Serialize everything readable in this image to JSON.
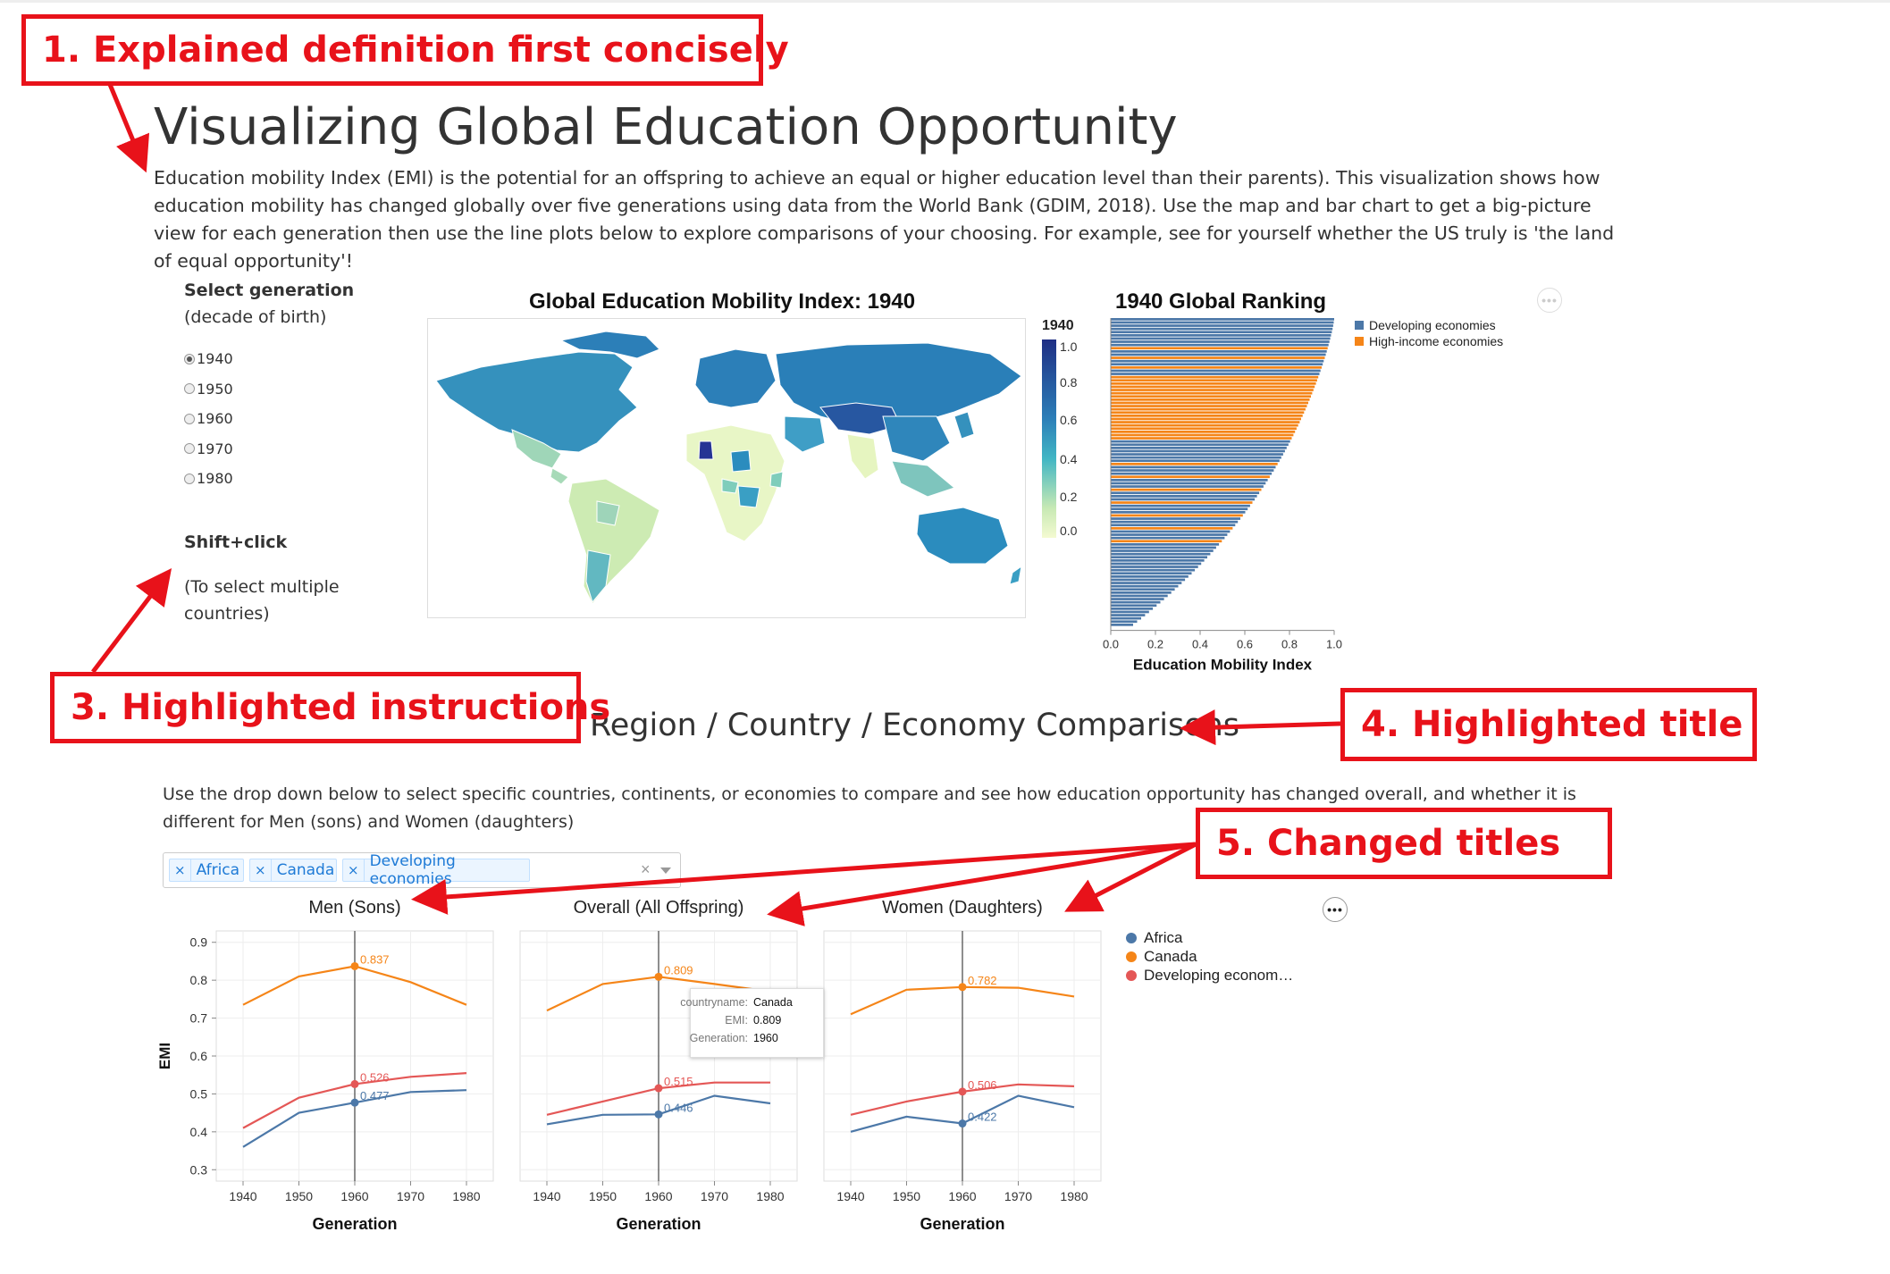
{
  "annotations": {
    "c1": "1. Explained definition first concisely",
    "c3": "3. Highlighted instructions",
    "c4": "4. Highlighted title",
    "c5": "5. Changed titles"
  },
  "header": {
    "title": "Visualizing Global Education Opportunity",
    "intro": "Education mobility Index (EMI) is the potential for an offspring to achieve an equal or higher education level than their parents). This visualization shows how education mobility has changed globally over five generations using data from the World Bank (GDIM, 2018). Use the map and bar chart to get a big-picture view for each generation then use the line plots below to explore comparisons of your choosing. For example, see for yourself whether the US truly is 'the land of equal opportunity'!"
  },
  "controls": {
    "select_title": "Select generation",
    "select_sub": "(decade of birth)",
    "options": [
      "1940",
      "1950",
      "1960",
      "1970",
      "1980"
    ],
    "selected": "1940",
    "shift_title": "Shift+click",
    "shift_desc": "(To select multiple countries)"
  },
  "map": {
    "title": "Global Education Mobility Index: 1940",
    "legend_title": "1940",
    "legend_ticks": [
      "1.0",
      "0.8",
      "0.6",
      "0.4",
      "0.2",
      "0.0"
    ],
    "colors": {
      "low": "#e3f4b4",
      "mid": "#3a9fc4",
      "high": "#1f2f84"
    }
  },
  "ranking": {
    "title": "1940 Global Ranking",
    "xlabel": "Education Mobility Index",
    "ticks": [
      "0.0",
      "0.2",
      "0.4",
      "0.6",
      "0.8",
      "1.0"
    ],
    "legend": [
      {
        "label": "Developing economies",
        "color": "#4c78a8"
      },
      {
        "label": "High-income economies",
        "color": "#f58518"
      }
    ]
  },
  "comparison": {
    "title": "Region / Country / Economy Comparisons",
    "desc": "Use the drop down below to select specific countries, continents, or economies to compare and see how education opportunity has changed overall, and whether it is different for Men (sons) and Women (daughters)",
    "tags": [
      "Africa",
      "Canada",
      "Developing economies"
    ],
    "clear_icon": "×",
    "panels": [
      "Men (Sons)",
      "Overall (All Offspring)",
      "Women (Daughters)"
    ],
    "ylabel": "EMI",
    "xlabel": "Generation",
    "yticks": [
      "0.9",
      "0.8",
      "0.7",
      "0.6",
      "0.5",
      "0.4",
      "0.3"
    ],
    "xticks": [
      "1940",
      "1950",
      "1960",
      "1970",
      "1980"
    ],
    "legend": [
      {
        "label": "Africa",
        "color": "#4c78a8"
      },
      {
        "label": "Canada",
        "color": "#f58518"
      },
      {
        "label": "Developing econom…",
        "color": "#e45756"
      }
    ],
    "tooltip": {
      "k1": "countryname:",
      "v1": "Canada",
      "k2": "EMI:",
      "v2": "0.809",
      "k3": "Generation:",
      "v3": "1960"
    }
  },
  "chart_data": [
    {
      "type": "bar",
      "title": "1940 Global Ranking",
      "xlabel": "Education Mobility Index",
      "xlim": [
        0,
        1
      ],
      "series": [
        {
          "name": "Developing economies",
          "values": []
        },
        {
          "name": "High-income economies",
          "values": []
        }
      ]
    },
    {
      "type": "line",
      "title": "Men (Sons)",
      "xlabel": "Generation",
      "ylabel": "EMI",
      "x": [
        1940,
        1950,
        1960,
        1970,
        1980
      ],
      "ylim": [
        0.27,
        0.93
      ],
      "series": [
        {
          "name": "Africa",
          "values": [
            0.36,
            0.45,
            0.477,
            0.505,
            0.51
          ]
        },
        {
          "name": "Canada",
          "values": [
            0.735,
            0.81,
            0.837,
            0.795,
            0.735
          ]
        },
        {
          "name": "Developing econom…",
          "values": [
            0.41,
            0.49,
            0.526,
            0.545,
            0.555
          ]
        }
      ],
      "labels": [
        "0.477",
        "0.837",
        "0.526"
      ]
    },
    {
      "type": "line",
      "title": "Overall (All Offspring)",
      "xlabel": "Generation",
      "ylabel": "EMI",
      "x": [
        1940,
        1950,
        1960,
        1970,
        1980
      ],
      "ylim": [
        0.27,
        0.93
      ],
      "series": [
        {
          "name": "Africa",
          "values": [
            0.42,
            0.445,
            0.446,
            0.495,
            0.475
          ]
        },
        {
          "name": "Canada",
          "values": [
            0.72,
            0.79,
            0.809,
            0.79,
            0.77
          ]
        },
        {
          "name": "Developing econom…",
          "values": [
            0.445,
            0.48,
            0.515,
            0.53,
            0.53
          ]
        }
      ],
      "labels": [
        "0.446",
        "0.809",
        "0.515"
      ]
    },
    {
      "type": "line",
      "title": "Women (Daughters)",
      "xlabel": "Generation",
      "ylabel": "EMI",
      "x": [
        1940,
        1950,
        1960,
        1970,
        1980
      ],
      "ylim": [
        0.27,
        0.93
      ],
      "series": [
        {
          "name": "Africa",
          "values": [
            0.4,
            0.44,
            0.422,
            0.495,
            0.465
          ]
        },
        {
          "name": "Canada",
          "values": [
            0.71,
            0.775,
            0.782,
            0.78,
            0.757
          ]
        },
        {
          "name": "Developing econom…",
          "values": [
            0.445,
            0.48,
            0.506,
            0.525,
            0.52
          ]
        }
      ],
      "labels": [
        "0.422",
        "0.782",
        "0.506"
      ]
    }
  ]
}
